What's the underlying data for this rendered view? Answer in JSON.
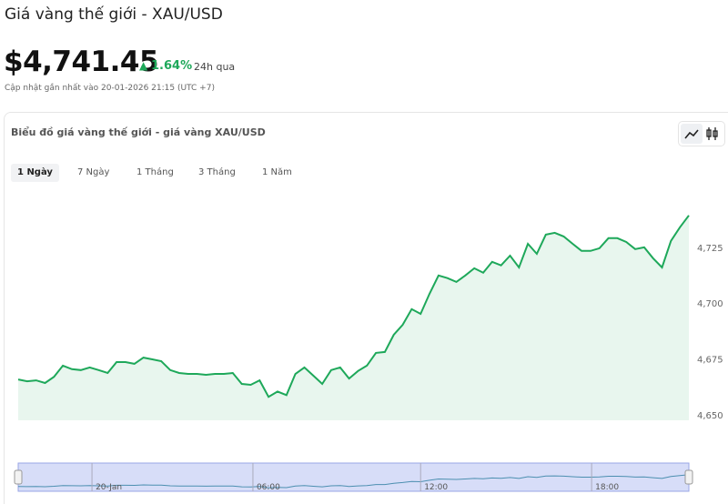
{
  "header": {
    "title": "Giá vàng thế giới - XAU/USD",
    "price": "$4,741.45",
    "change": "1.64%",
    "change_period": "24h qua",
    "updated": "Cập nhật gần nhất vào 20-01-2026 21:15 (UTC +7)"
  },
  "card": {
    "title": "Biểu đồ giá vàng thế giới - giá vàng XAU/USD",
    "tabs": [
      "1 Ngày",
      "7 Ngày",
      "1 Tháng",
      "3 Tháng",
      "1 Năm"
    ],
    "active_tab": 0
  },
  "chart_data": {
    "type": "line",
    "color": "#1ea85a",
    "grid": false,
    "values": [
      4665.8,
      4665,
      4665.4,
      4664.2,
      4667,
      4672,
      4670.4,
      4670,
      4671.2,
      4670,
      4668.7,
      4673.6,
      4673.6,
      4672.8,
      4675.6,
      4674.8,
      4674,
      4670,
      4668.7,
      4668.3,
      4668.3,
      4667.9,
      4668.3,
      4668.3,
      4668.7,
      4663.8,
      4663.4,
      4665.4,
      4658,
      4660.4,
      4658.8,
      4668.3,
      4671.2,
      4667.5,
      4663.8,
      4670,
      4671.2,
      4666.2,
      4669.6,
      4672,
      4677.7,
      4678.1,
      4685.8,
      4690.3,
      4697.3,
      4695.2,
      4704.2,
      4712.4,
      4711.2,
      4709.5,
      4712.4,
      4715.6,
      4713.6,
      4718.5,
      4716.9,
      4721.3,
      4716,
      4726.6,
      4722.1,
      4730.7,
      4731.5,
      4729.9,
      4726.6,
      4723.4,
      4723.4,
      4724.6,
      4729.1,
      4729.1,
      4727.4,
      4724.2,
      4725,
      4720.1,
      4716,
      4727.9,
      4734,
      4739.3
    ],
    "ylim": [
      4647.5,
      4749
    ],
    "yticks": [
      {
        "value": 4650,
        "label": "4,650"
      },
      {
        "value": 4675,
        "label": "4,675"
      },
      {
        "value": 4700,
        "label": "4,700"
      },
      {
        "value": 4725,
        "label": "4,725"
      }
    ],
    "navigator_labels": [
      "20-Jan",
      "06:00",
      "12:00",
      "18:00"
    ]
  }
}
